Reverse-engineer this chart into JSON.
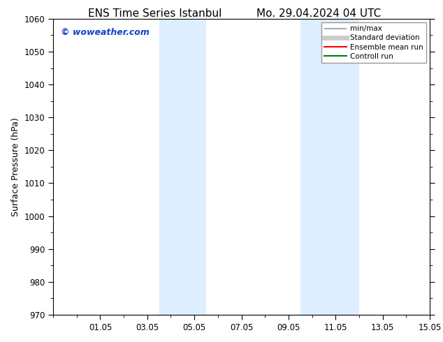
{
  "title_left": "ENS Time Series Istanbul",
  "title_right": "Mo. 29.04.2024 04 UTC",
  "ylabel": "Surface Pressure (hPa)",
  "ylim": [
    970,
    1060
  ],
  "yticks": [
    970,
    980,
    990,
    1000,
    1010,
    1020,
    1030,
    1040,
    1050,
    1060
  ],
  "xtick_labels": [
    "01.05",
    "03.05",
    "05.05",
    "07.05",
    "09.05",
    "11.05",
    "13.05",
    "15.05"
  ],
  "xtick_positions": [
    2,
    4,
    6,
    8,
    10,
    12,
    14,
    16
  ],
  "shaded_bands": [
    {
      "x_start": 4.5,
      "x_end": 6.5
    },
    {
      "x_start": 10.5,
      "x_end": 13.0
    }
  ],
  "shaded_color": "#ddeeff",
  "watermark_text": "© woweather.com",
  "watermark_color": "#1144cc",
  "legend_items": [
    {
      "label": "min/max",
      "color": "#aaaaaa",
      "lw": 1.5
    },
    {
      "label": "Standard deviation",
      "color": "#cccccc",
      "lw": 5
    },
    {
      "label": "Ensemble mean run",
      "color": "red",
      "lw": 1.5
    },
    {
      "label": "Controll run",
      "color": "green",
      "lw": 1.5
    }
  ],
  "bg_color": "#ffffff",
  "plot_bg_color": "#ffffff",
  "title_fontsize": 11,
  "tick_fontsize": 8.5,
  "ylabel_fontsize": 9,
  "watermark_fontsize": 9
}
